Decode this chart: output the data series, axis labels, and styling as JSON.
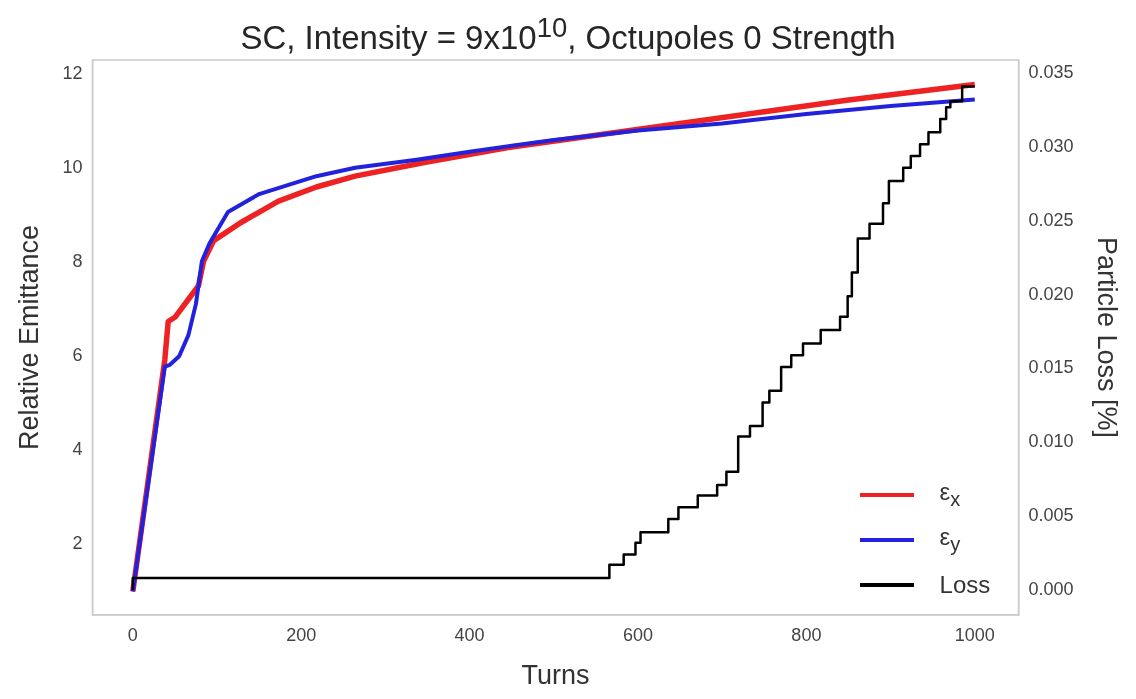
{
  "chart_data": {
    "type": "line",
    "title": "SC, Intensity = 9x10$^{10}$, Octupoles 0 Strength",
    "xlabel": "Turns",
    "ylabel": "Relative Emittance",
    "y2label": "Particle Loss [%]",
    "xlim": [
      -48,
      1052
    ],
    "xticks": [
      0,
      200,
      400,
      600,
      800,
      1000
    ],
    "ylim": [
      0.5,
      12.3
    ],
    "yticks": [
      2,
      4,
      6,
      8,
      10,
      12
    ],
    "y2lim": [
      -0.0017,
      0.0359
    ],
    "y2ticks": [
      {
        "value": 0,
        "label": "0.000"
      },
      {
        "value": 0.005,
        "label": "0.005"
      },
      {
        "value": 0.01,
        "label": "0.010"
      },
      {
        "value": 0.015,
        "label": "0.015"
      },
      {
        "value": 0.02,
        "label": "0.020"
      },
      {
        "value": 0.025,
        "label": "0.025"
      },
      {
        "value": 0.03,
        "label": "0.030"
      },
      {
        "value": 0.035,
        "label": "0.035"
      }
    ],
    "grid": false,
    "legend": "bottom right",
    "series": [
      {
        "name": "ε$_{x}$",
        "color": "#ee2222",
        "x": [
          0,
          38,
          42,
          50,
          78,
          84,
          96,
          128,
          173,
          218,
          264,
          346,
          450,
          550,
          650,
          750,
          850,
          1000
        ],
        "values": [
          1,
          5.93,
          6.74,
          6.83,
          7.5,
          8.02,
          8.46,
          8.84,
          9.3,
          9.6,
          9.83,
          10.12,
          10.45,
          10.7,
          10.95,
          11.2,
          11.45,
          11.78
        ]
      },
      {
        "name": "ε$_{y}$",
        "color": "#2222dd",
        "x": [
          0,
          38,
          44,
          55,
          66,
          75,
          82,
          91,
          113,
          150,
          218,
          264,
          337,
          400,
          500,
          600,
          700,
          800,
          900,
          1000
        ],
        "values": [
          1,
          5.78,
          5.82,
          6.0,
          6.45,
          7.12,
          8.02,
          8.4,
          9.07,
          9.45,
          9.83,
          10.01,
          10.18,
          10.35,
          10.6,
          10.8,
          10.95,
          11.15,
          11.32,
          11.46
        ]
      },
      {
        "name": "Loss",
        "type": "step",
        "axis": "y2",
        "color": "#000000",
        "x": [
          0,
          566,
          583,
          597,
          603,
          636,
          648,
          671,
          694,
          705,
          719,
          733,
          748,
          756,
          770,
          782,
          796,
          817,
          840,
          849,
          854,
          861,
          875,
          891,
          898,
          915,
          924,
          935,
          945,
          959,
          966,
          971,
          985,
          993,
          1000
        ],
        "values": [
          0,
          0.0008,
          0.0017,
          0.0024,
          0.0032,
          0.0039,
          0.0048,
          0.0056,
          0.0064,
          0.0071,
          0.008,
          0.0104,
          0.0111,
          0.0127,
          0.0135,
          0.0151,
          0.0159,
          0.0167,
          0.0176,
          0.0185,
          0.0199,
          0.0215,
          0.0238,
          0.0248,
          0.0262,
          0.0277,
          0.0286,
          0.0294,
          0.0302,
          0.031,
          0.0319,
          0.0327,
          0.0331,
          0.0341,
          0.0341
        ]
      }
    ]
  }
}
